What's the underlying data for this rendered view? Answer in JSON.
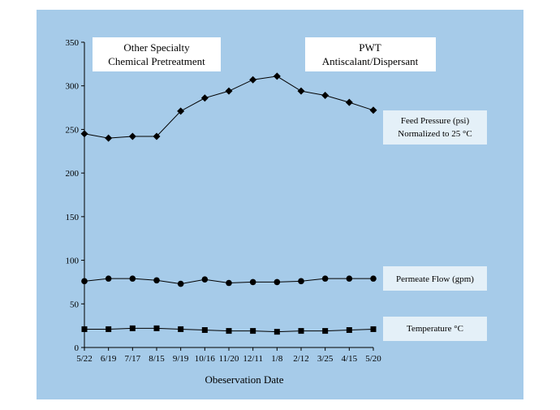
{
  "chart_data": {
    "type": "line",
    "categories": [
      "5/22",
      "6/19",
      "7/17",
      "8/15",
      "9/19",
      "10/16",
      "11/20",
      "12/11",
      "1/8",
      "2/12",
      "3/25",
      "4/15",
      "5/20"
    ],
    "series": [
      {
        "name": "Feed Pressure (psi) Normalized to 25 °C",
        "marker": "diamond",
        "values": [
          245,
          240,
          242,
          242,
          271,
          286,
          294,
          307,
          311,
          294,
          289,
          281,
          272
        ]
      },
      {
        "name": "Permeate Flow (gpm)",
        "marker": "circle",
        "values": [
          76,
          79,
          79,
          77,
          73,
          78,
          74,
          75,
          75,
          76,
          79,
          79,
          79
        ]
      },
      {
        "name": "Temperature °C",
        "marker": "square",
        "values": [
          21,
          21,
          22,
          22,
          21,
          20,
          19,
          19,
          18,
          19,
          19,
          20,
          21
        ]
      }
    ],
    "xlabel": "Obeservation Date",
    "ylabel": "",
    "ylim": [
      0,
      350
    ],
    "yticks": [
      0,
      50,
      100,
      150,
      200,
      250,
      300,
      350
    ],
    "grid": false,
    "legend": "right",
    "legend_labels": {
      "feed_line1": "Feed Pressure (psi)",
      "feed_line2": "Normalized to 25 °C",
      "permeate": "Permeate Flow (gpm)",
      "temperature": "Temperature °C"
    },
    "annotations": {
      "left_line1": "Other Specialty",
      "left_line2": "Chemical Pretreatment",
      "right_line1": "PWT",
      "right_line2": "Antiscalant/Dispersant"
    },
    "line_color": "#000000",
    "background_color": "#a6cbe9"
  }
}
